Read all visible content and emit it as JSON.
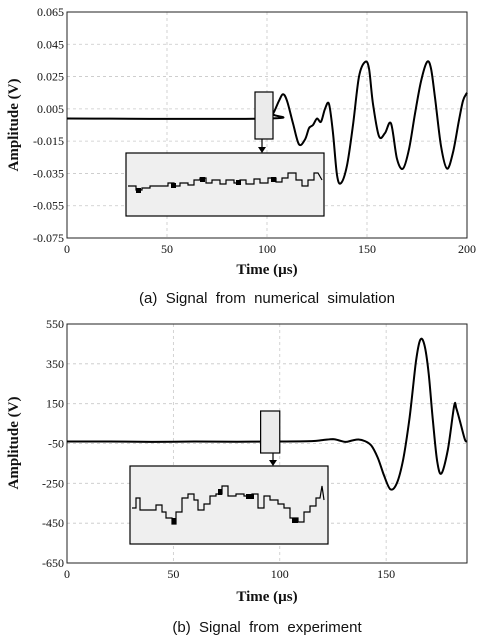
{
  "chart_data": [
    {
      "type": "line",
      "caption": "(a)  Signal  from  numerical  simulation",
      "xlabel": "Time (µs)",
      "ylabel": "Amplitude (V)",
      "xlim": [
        0,
        200
      ],
      "ylim": [
        -0.075,
        0.065
      ],
      "xticks": [
        0,
        50,
        100,
        150,
        200
      ],
      "yticks": [
        0.065,
        0.045,
        0.025,
        0.005,
        -0.015,
        -0.035,
        -0.055,
        -0.075
      ],
      "ytick_labels": [
        "0.065",
        "0.045",
        "0.025",
        "0.005",
        "-0.015",
        "-0.035",
        "-0.055",
        "-0.075"
      ],
      "grid": true,
      "zoom_window_x": [
        94,
        103
      ],
      "series": [
        {
          "x": [
            0,
            100,
            103,
            106,
            108,
            110,
            113,
            116,
            119,
            121,
            123,
            125,
            127,
            129,
            131,
            133,
            135,
            137,
            140,
            143,
            146,
            149,
            151,
            153,
            156,
            159,
            162,
            165,
            168,
            171,
            174,
            177,
            180,
            182,
            184,
            187,
            190,
            193,
            196,
            198,
            200
          ],
          "y": [
            -0.001,
            -0.001,
            0.002,
            0.01,
            0.014,
            0.01,
            -0.004,
            -0.017,
            -0.014,
            -0.007,
            -0.005,
            -0.001,
            -0.003,
            0.005,
            0.008,
            -0.01,
            -0.036,
            -0.041,
            -0.03,
            -0.005,
            0.025,
            0.034,
            0.03,
            0.008,
            -0.012,
            -0.01,
            -0.004,
            -0.026,
            -0.032,
            -0.02,
            0.002,
            0.022,
            0.034,
            0.03,
            0.012,
            -0.018,
            -0.032,
            -0.022,
            -0.002,
            0.01,
            0.015
          ]
        }
      ]
    },
    {
      "type": "line",
      "caption": "(b)  Signal  from  experiment",
      "xlabel": "Time (µs)",
      "ylabel": "Amplitude (V)",
      "xlim": [
        0,
        188
      ],
      "ylim": [
        -650,
        550
      ],
      "xticks": [
        0,
        50,
        100,
        150
      ],
      "yticks": [
        550,
        350,
        150,
        -50,
        -250,
        -450,
        -650
      ],
      "ytick_labels": [
        "550",
        "350",
        "150",
        "-50",
        "-250",
        "-450",
        "-650"
      ],
      "grid": true,
      "zoom_window_x": [
        91,
        100
      ],
      "series": [
        {
          "x": [
            0,
            20,
            40,
            60,
            80,
            100,
            115,
            120,
            125,
            128,
            131,
            134,
            137,
            140,
            143,
            146,
            149,
            152,
            155,
            158,
            161,
            164,
            166,
            168,
            170,
            172,
            174,
            176,
            179,
            182,
            183,
            185,
            187,
            188
          ],
          "y": [
            -40,
            -40,
            -42,
            -40,
            -41,
            -40,
            -38,
            -33,
            -28,
            -35,
            -42,
            -35,
            -30,
            -38,
            -60,
            -120,
            -210,
            -280,
            -250,
            -130,
            80,
            360,
            470,
            445,
            300,
            60,
            -140,
            -200,
            -80,
            140,
            125,
            50,
            -30,
            -40
          ]
        }
      ]
    }
  ]
}
